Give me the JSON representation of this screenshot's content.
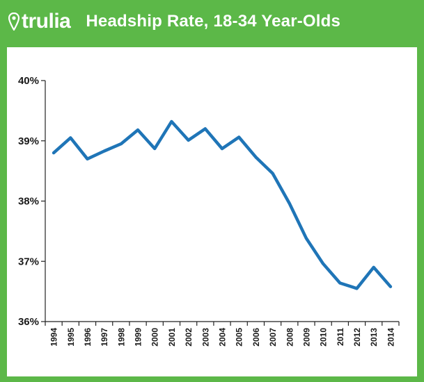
{
  "brand": {
    "name": "trulia"
  },
  "colors": {
    "background": "#5cb848",
    "line": "#1f75b7",
    "axis": "#222222"
  },
  "chart_data": {
    "type": "line",
    "title": "Headship Rate, 18-34 Year-Olds",
    "xlabel": "",
    "ylabel": "",
    "x": [
      "1994",
      "1995",
      "1996",
      "1997",
      "1998",
      "1999",
      "2000",
      "2001",
      "2002",
      "2003",
      "2004",
      "2005",
      "2006",
      "2007",
      "2008",
      "2009",
      "2010",
      "2011",
      "2012",
      "2013",
      "2014"
    ],
    "values": [
      38.8,
      39.05,
      38.7,
      38.83,
      38.95,
      39.18,
      38.87,
      39.32,
      39.01,
      39.2,
      38.87,
      39.06,
      38.73,
      38.46,
      37.96,
      37.38,
      36.96,
      36.64,
      36.55,
      36.9,
      36.58
    ],
    "ylim": [
      36,
      40
    ],
    "yticks": [
      36,
      37,
      38,
      39,
      40
    ],
    "ytick_labels": [
      "36%",
      "37%",
      "38%",
      "39%",
      "40%"
    ],
    "grid": false,
    "legend": "none"
  }
}
